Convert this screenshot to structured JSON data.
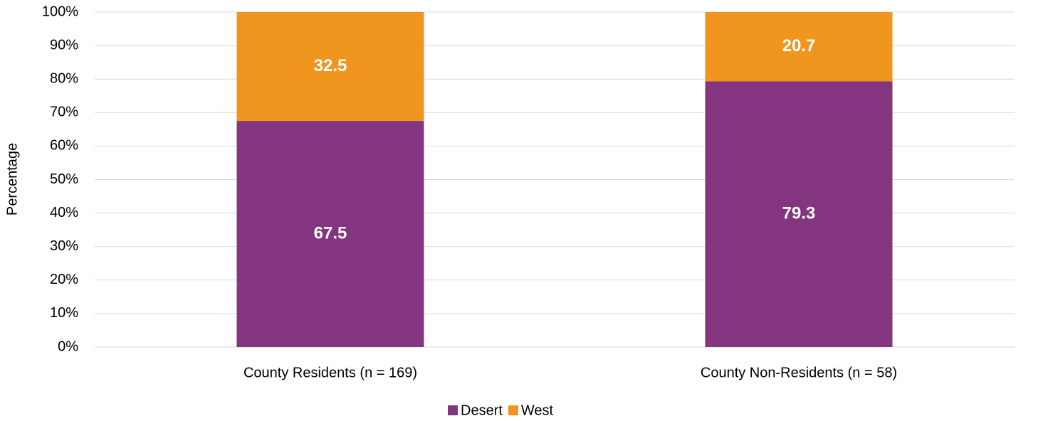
{
  "chart_data": {
    "type": "stacked_bar",
    "y_label": "Percentage",
    "categories": [
      "County Residents (n = 169)",
      "County Non-Residents (n = 58)"
    ],
    "series": [
      {
        "name": "Desert",
        "color": "#84357f",
        "values": [
          67.5,
          79.3
        ]
      },
      {
        "name": "West",
        "color": "#f0961e",
        "values": [
          32.5,
          20.7
        ]
      }
    ],
    "ylim": [
      0,
      100
    ],
    "yticks": [
      {
        "value": 0,
        "label": "0%"
      },
      {
        "value": 10,
        "label": "10%"
      },
      {
        "value": 20,
        "label": "20%"
      },
      {
        "value": 30,
        "label": "30%"
      },
      {
        "value": 40,
        "label": "40%"
      },
      {
        "value": 50,
        "label": "50%"
      },
      {
        "value": 60,
        "label": "60%"
      },
      {
        "value": 70,
        "label": "70%"
      },
      {
        "value": 80,
        "label": "80%"
      },
      {
        "value": 90,
        "label": "90%"
      },
      {
        "value": 100,
        "label": "100%"
      }
    ],
    "grid": true,
    "legend": "bottom"
  }
}
